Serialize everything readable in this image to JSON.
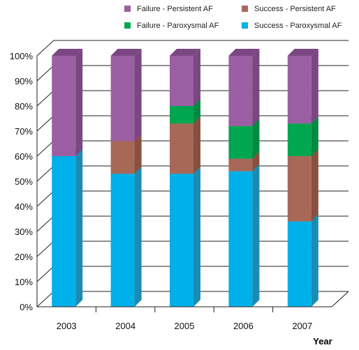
{
  "chart_data": {
    "type": "bar",
    "stacked": true,
    "three_d": true,
    "categories": [
      "2003",
      "2004",
      "2005",
      "2006",
      "2007"
    ],
    "series": [
      {
        "name": "Success - Paroxysmal AF",
        "color": "#00b0e8",
        "side_color": "#1a8cb4",
        "values": [
          60,
          53,
          53,
          54,
          34
        ]
      },
      {
        "name": "Success - Persistent AF",
        "color": "#a86858",
        "side_color": "#87503f",
        "values": [
          0,
          13,
          20,
          5,
          26
        ]
      },
      {
        "name": "Failure - Paroxysmal AF",
        "color": "#00a650",
        "side_color": "#008a40",
        "values": [
          0,
          0,
          7,
          13,
          13
        ]
      },
      {
        "name": "Failure - Persistent AF",
        "color": "#9c5fa4",
        "side_color": "#7a4782",
        "values": [
          40,
          34,
          20,
          28,
          27
        ]
      }
    ],
    "yticks": [
      "0%",
      "10%",
      "20%",
      "30%",
      "40%",
      "50%",
      "60%",
      "70%",
      "80%",
      "90%",
      "100%"
    ],
    "ylim": [
      0,
      100
    ],
    "xlabel": "Year",
    "ylabel": "",
    "grid": true,
    "legend_position": "top-right"
  }
}
